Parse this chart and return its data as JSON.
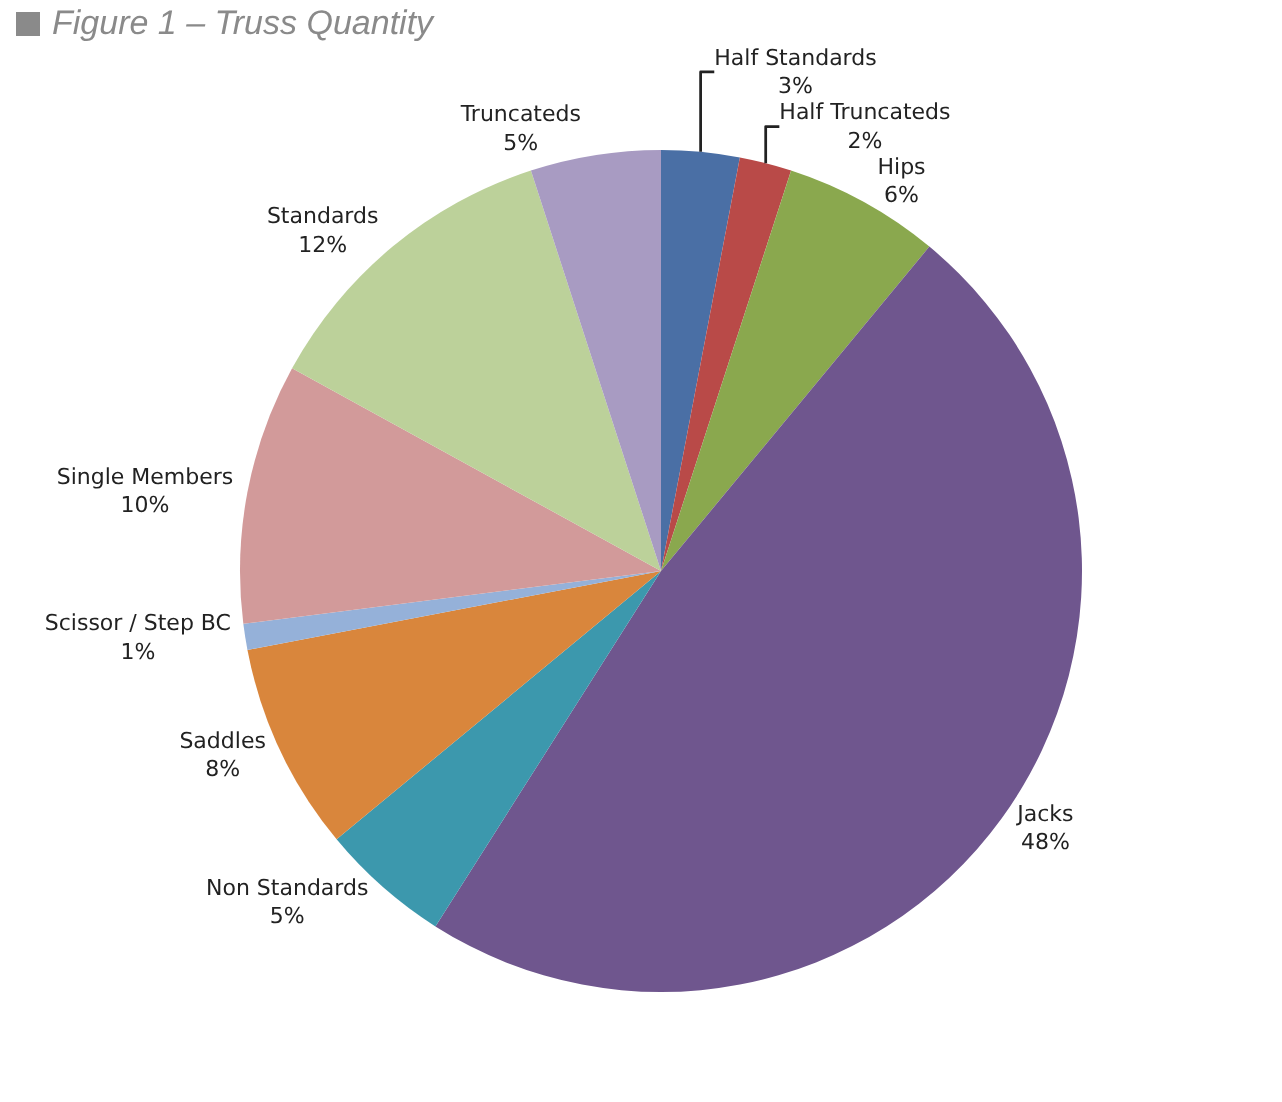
{
  "chart_data": {
    "type": "pie",
    "title": "Figure  1 – Truss Quantity",
    "categories": [
      "Half Standards",
      "Half Truncateds",
      "Hips",
      "Jacks",
      "Non Standards",
      "Saddles",
      "Scissor / Step BC",
      "Single Members",
      "Standards",
      "Truncateds"
    ],
    "values": [
      3,
      2,
      6,
      48,
      5,
      8,
      1,
      10,
      12,
      5
    ],
    "colors": [
      "#4a6fa5",
      "#b94a48",
      "#8aa84e",
      "#6f568e",
      "#3c98ad",
      "#d9863c",
      "#95b1d9",
      "#d29a9a",
      "#bcd19a",
      "#a89bc2"
    ],
    "value_labels": [
      "3%",
      "2%",
      "6%",
      "48%",
      "5%",
      "8%",
      "1%",
      "10%",
      "12%",
      "5%"
    ],
    "legend": false
  }
}
